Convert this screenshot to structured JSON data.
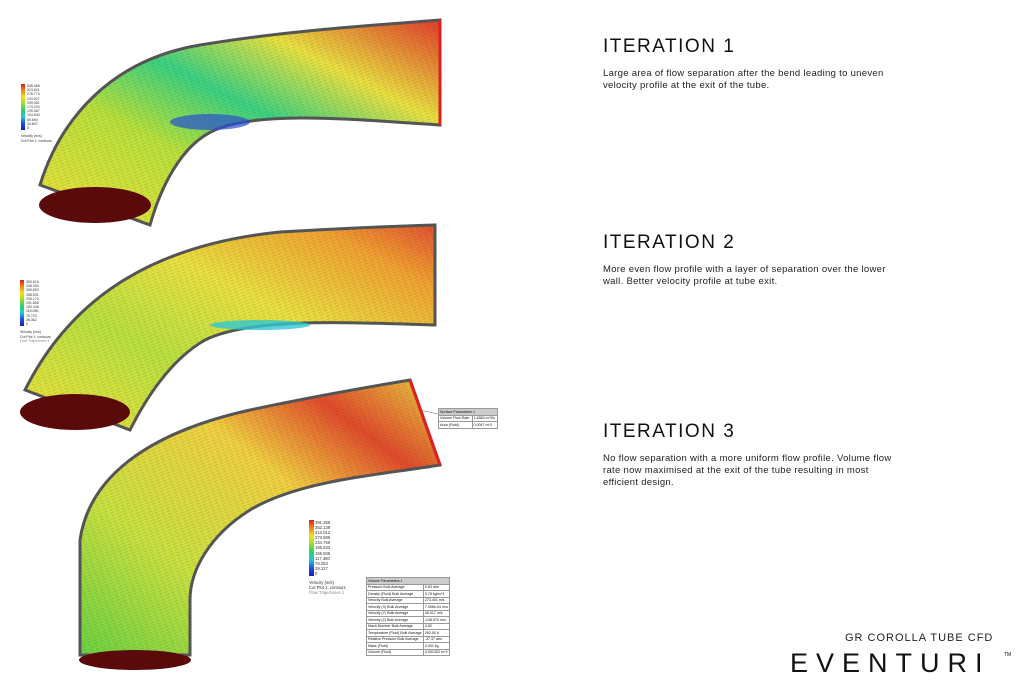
{
  "iterations": [
    {
      "title": "ITERATION 1",
      "description": "Large area of flow separation after the bend leading to uneven velocity profile at the exit of the tube.",
      "legend": {
        "values": [
          "348.468",
          "313.621",
          "278.774",
          "243.927",
          "209.081",
          "174.234",
          "139.387",
          "104.540",
          "69.694",
          "34.847",
          "0"
        ],
        "unit": "Velocity [m/s]",
        "caption": "Cut Plot 1: contours"
      }
    },
    {
      "title": "ITERATION 2",
      "description": "More even flow profile with a layer of separation over the lower wall. Better velocity profile at tube exit.",
      "legend": {
        "values": [
          "383.616",
          "345.254",
          "306.893",
          "268.531",
          "230.170",
          "191.808",
          "153.446",
          "115.085",
          "76.723",
          "38.362",
          "0"
        ],
        "unit": "Velocity [m/s]",
        "caption": "Cut Plot 1: contours",
        "caption2": "Flow Trajectories 1"
      }
    },
    {
      "title": "ITERATION 3",
      "description": "No flow separation with a more uniform flow profile. Volume flow rate now maximised at the exit of the tube resulting in most efficient design.",
      "legend": {
        "values": [
          "391.265",
          "352.139",
          "313.012",
          "273.886",
          "234.759",
          "195.633",
          "156.506",
          "117.380",
          "78.253",
          "39.127",
          "0"
        ],
        "unit": "Velocity [m/s]",
        "caption": "Cut Plot 1: contours",
        "caption2": "Flow Trajectories 1"
      }
    }
  ],
  "surface_parameters": {
    "title": "Surface Parameters 1",
    "rows": [
      [
        "Volume Flow Rate",
        "1.4863 m^3/s"
      ],
      [
        "Area (Fluid)",
        "0.0047 m^2"
      ]
    ]
  },
  "volume_parameters": {
    "title": "Volume Parameters 1",
    "rows": [
      [
        "Pressure Bulk Average",
        "0.63 atm"
      ],
      [
        "Density (Fluid) Bulk Average",
        "0.78 kg/m^3"
      ],
      [
        "Velocity Bulk Average",
        "273.401 m/s"
      ],
      [
        "Velocity (X) Bulk Average",
        "7.006e-04 m/s"
      ],
      [
        "Velocity (Y) Bulk Average",
        "48.017 m/s"
      ],
      [
        "Velocity (Z) Bulk Average",
        "-248.970 m/s"
      ],
      [
        "Mach Number Bulk Average",
        "0.82"
      ],
      [
        "Temperature (Fluid) Bulk Average",
        "262.50 K"
      ],
      [
        "Relative Pressure Bulk Average",
        "-37.37 atm"
      ],
      [
        "Mass (Fluid)",
        "0.001 kg"
      ],
      [
        "Volume (Fluid)",
        "0.001353 m^3"
      ]
    ]
  },
  "brand": {
    "subtitle": "GR COROLLA TUBE CFD",
    "logo": "EVENTURI",
    "tm": "TM"
  },
  "colors": {
    "high": "#e02020",
    "mid": "#f2e21b",
    "low": "#2ad06a",
    "min": "#2040d0"
  }
}
